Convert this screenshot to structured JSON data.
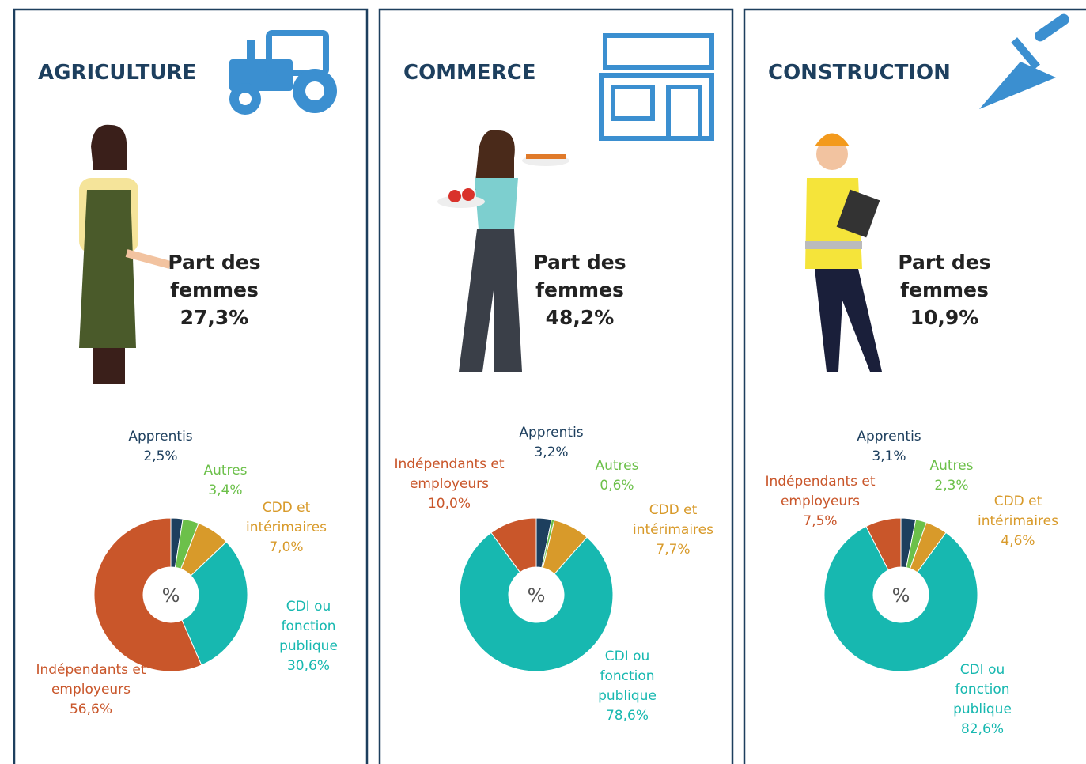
{
  "chart_data": [
    {
      "type": "pie",
      "title": "AGRICULTURE",
      "annotation": [
        "Part des",
        "femmes",
        "27,3%"
      ],
      "center_label": "%",
      "categories": [
        "Apprentis",
        "Autres",
        "CDD et intérimaires",
        "CDI ou fonction publique",
        "Indépendants et employeurs"
      ],
      "values": [
        2.5,
        3.4,
        7.0,
        30.6,
        56.6
      ],
      "value_labels": [
        "2,5%",
        "3,4%",
        "7,0%",
        "30,6%",
        "56,6%"
      ],
      "colors": [
        "#1d3f5e",
        "#6cc04a",
        "#d89a2a",
        "#17b8b0",
        "#c9562a"
      ]
    },
    {
      "type": "pie",
      "title": "COMMERCE",
      "annotation": [
        "Part des",
        "femmes",
        "48,2%"
      ],
      "center_label": "%",
      "categories": [
        "Apprentis",
        "Autres",
        "CDD et intérimaires",
        "CDI ou fonction publique",
        "Indépendants et employeurs"
      ],
      "values": [
        3.2,
        0.6,
        7.7,
        78.6,
        10.0
      ],
      "value_labels": [
        "3,2%",
        "0,6%",
        "7,7%",
        "78,6%",
        "10,0%"
      ],
      "colors": [
        "#1d3f5e",
        "#6cc04a",
        "#d89a2a",
        "#17b8b0",
        "#c9562a"
      ]
    },
    {
      "type": "pie",
      "title": "CONSTRUCTION",
      "annotation": [
        "Part des",
        "femmes",
        "10,9%"
      ],
      "center_label": "%",
      "categories": [
        "Apprentis",
        "Autres",
        "CDD et intérimaires",
        "CDI ou fonction publique",
        "Indépendants et employeurs"
      ],
      "values": [
        3.1,
        2.3,
        4.6,
        82.6,
        7.5
      ],
      "value_labels": [
        "3,1%",
        "2,3%",
        "4,6%",
        "82,6%",
        "7,5%"
      ],
      "colors": [
        "#1d3f5e",
        "#6cc04a",
        "#d89a2a",
        "#17b8b0",
        "#c9562a"
      ]
    }
  ]
}
